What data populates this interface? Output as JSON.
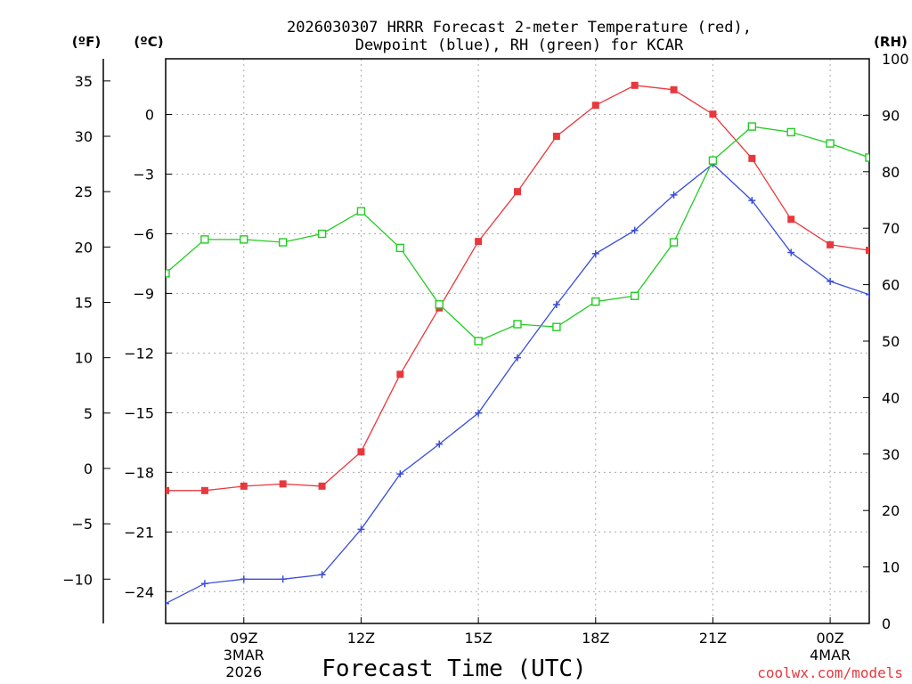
{
  "chart_data": {
    "type": "line",
    "title": "2026030307 HRRR Forecast 2-meter Temperature (red),",
    "subtitle": "Dewpoint (blue), RH (green) for KCAR",
    "xlabel": "Forecast Time (UTC)",
    "credit": "coolwx.com/models",
    "units": {
      "f": "(ºF)",
      "c": "(ºC)",
      "rh": "(RH)"
    },
    "x_hours": [
      7,
      8,
      9,
      10,
      11,
      12,
      13,
      14,
      15,
      16,
      17,
      18,
      19,
      20,
      21,
      22,
      23,
      24,
      25
    ],
    "xlim": [
      7,
      25
    ],
    "x_ticks": [
      {
        "hour": 9,
        "label": "09Z",
        "sub1": "3MAR",
        "sub2": "2026"
      },
      {
        "hour": 12,
        "label": "12Z",
        "sub1": "",
        "sub2": ""
      },
      {
        "hour": 15,
        "label": "15Z",
        "sub1": "",
        "sub2": ""
      },
      {
        "hour": 18,
        "label": "18Z",
        "sub1": "",
        "sub2": ""
      },
      {
        "hour": 21,
        "label": "21Z",
        "sub1": "",
        "sub2": ""
      },
      {
        "hour": 24,
        "label": "00Z",
        "sub1": "4MAR",
        "sub2": ""
      }
    ],
    "fahrenheit_axis": {
      "ticks": [
        35,
        30,
        25,
        20,
        15,
        10,
        5,
        0,
        -5,
        -10
      ],
      "lim": [
        -14,
        37
      ]
    },
    "celsius_axis": {
      "ticks": [
        0,
        -3,
        -6,
        -9,
        -12,
        -15,
        -18,
        -21,
        -24
      ],
      "lim": [
        -25.6,
        2.8
      ]
    },
    "rh_axis": {
      "ticks": [
        100,
        90,
        80,
        70,
        60,
        50,
        40,
        30,
        20,
        10,
        0
      ],
      "lim": [
        0,
        100
      ]
    },
    "series": [
      {
        "name": "Temperature",
        "color": "#e8383d",
        "marker": "filled-square",
        "axis": "f",
        "values": [
          -2,
          -2,
          -1.6,
          -1.4,
          -1.6,
          1.5,
          8.5,
          14.5,
          20.5,
          25,
          30,
          32.8,
          34.6,
          34.2,
          32,
          28,
          22.5,
          20.2,
          19.7
        ]
      },
      {
        "name": "Dewpoint",
        "color": "#3a4ed8",
        "marker": "plus",
        "axis": "f",
        "values": [
          -12.2,
          -10.4,
          -10,
          -10,
          -9.6,
          -5.5,
          -0.5,
          2.2,
          5,
          10,
          14.8,
          19.4,
          21.5,
          24.7,
          27.5,
          24.2,
          19.5,
          16.9,
          15.7
        ]
      },
      {
        "name": "RH",
        "color": "#22cc22",
        "marker": "open-square",
        "axis": "rh",
        "values": [
          62,
          68,
          68,
          67.5,
          69,
          73,
          66.5,
          56.5,
          50,
          53,
          52.5,
          57,
          58,
          67.5,
          82,
          88,
          87,
          85,
          82.5
        ]
      }
    ]
  }
}
